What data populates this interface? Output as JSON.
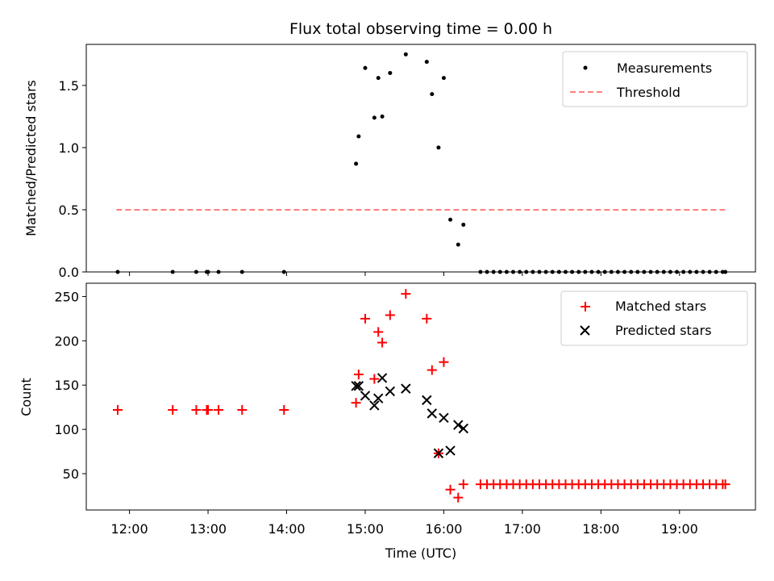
{
  "chart_data": [
    {
      "type": "scatter",
      "title": "Flux total observing time = 0.00 h",
      "ylabel": "Matched/Predicted stars",
      "xlabel": "",
      "xlim": [
        "11:27",
        "19:58"
      ],
      "ylim": [
        0,
        1.83
      ],
      "yticks": [
        "0.0",
        "0.5",
        "1.0",
        "1.5"
      ],
      "legend_position": "top-right",
      "legend": [
        "Measurements",
        "Threshold"
      ],
      "colors": {
        "measurements": "#000000",
        "threshold": "#ff7f7f"
      },
      "threshold": {
        "value": 0.5,
        "x_start": "11:50",
        "x_end": "19:35"
      },
      "series": [
        {
          "name": "Measurements",
          "x": [
            "11:51",
            "12:33",
            "12:51",
            "12:59",
            "13:00",
            "13:08",
            "13:26",
            "13:58",
            "14:53",
            "14:55",
            "15:00",
            "15:07",
            "15:10",
            "15:13",
            "15:19",
            "15:31",
            "15:47",
            "15:51",
            "15:56",
            "16:00",
            "16:05",
            "16:11",
            "16:15",
            "16:28",
            "16:33",
            "16:38",
            "16:43",
            "16:48",
            "16:53",
            "16:58",
            "17:03",
            "17:08",
            "17:13",
            "17:18",
            "17:23",
            "17:28",
            "17:33",
            "17:38",
            "17:43",
            "17:48",
            "17:53",
            "17:58",
            "18:03",
            "18:08",
            "18:13",
            "18:18",
            "18:23",
            "18:28",
            "18:33",
            "18:38",
            "18:43",
            "18:48",
            "18:53",
            "18:58",
            "19:03",
            "19:08",
            "19:13",
            "19:18",
            "19:23",
            "19:28",
            "19:33",
            "19:35"
          ],
          "y": [
            0,
            0,
            0,
            0,
            0,
            0,
            0,
            0,
            0.87,
            1.09,
            1.64,
            1.24,
            1.56,
            1.25,
            1.6,
            1.75,
            1.69,
            1.43,
            1.0,
            1.56,
            0.42,
            0.22,
            0.38,
            0,
            0,
            0,
            0,
            0,
            0,
            0,
            0,
            0,
            0,
            0,
            0,
            0,
            0,
            0,
            0,
            0,
            0,
            0,
            0,
            0,
            0,
            0,
            0,
            0,
            0,
            0,
            0,
            0,
            0,
            0,
            0,
            0,
            0,
            0,
            0,
            0,
            0,
            0
          ]
        }
      ]
    },
    {
      "type": "scatter",
      "title": "",
      "ylabel": "Count",
      "xlabel": "Time (UTC)",
      "xlim": [
        "11:27",
        "19:58"
      ],
      "ylim": [
        9,
        265
      ],
      "xticks": [
        "12:00",
        "13:00",
        "14:00",
        "15:00",
        "16:00",
        "17:00",
        "18:00",
        "19:00"
      ],
      "yticks": [
        "50",
        "100",
        "150",
        "200",
        "250"
      ],
      "legend_position": "top-right",
      "legend": [
        "Matched stars",
        "Predicted stars"
      ],
      "colors": {
        "matched": "#ff0000",
        "predicted": "#000000"
      },
      "series": [
        {
          "name": "Matched stars",
          "x": [
            "11:51",
            "12:33",
            "12:51",
            "12:59",
            "13:00",
            "13:08",
            "13:26",
            "13:58",
            "14:53",
            "14:55",
            "15:00",
            "15:07",
            "15:10",
            "15:13",
            "15:19",
            "15:31",
            "15:47",
            "15:51",
            "15:56",
            "16:00",
            "16:05",
            "16:11",
            "16:15",
            "16:28",
            "16:33",
            "16:38",
            "16:43",
            "16:48",
            "16:53",
            "16:58",
            "17:03",
            "17:08",
            "17:13",
            "17:18",
            "17:23",
            "17:28",
            "17:33",
            "17:38",
            "17:43",
            "17:48",
            "17:53",
            "17:58",
            "18:03",
            "18:08",
            "18:13",
            "18:18",
            "18:23",
            "18:28",
            "18:33",
            "18:38",
            "18:43",
            "18:48",
            "18:53",
            "18:58",
            "19:03",
            "19:08",
            "19:13",
            "19:18",
            "19:23",
            "19:28",
            "19:33",
            "19:35"
          ],
          "y": [
            122,
            122,
            122,
            122,
            122,
            122,
            122,
            122,
            130,
            162,
            225,
            157,
            210,
            198,
            229,
            253,
            225,
            167,
            73,
            176,
            32,
            23,
            38,
            38,
            38,
            38,
            38,
            38,
            38,
            38,
            38,
            38,
            38,
            38,
            38,
            38,
            38,
            38,
            38,
            38,
            38,
            38,
            38,
            38,
            38,
            38,
            38,
            38,
            38,
            38,
            38,
            38,
            38,
            38,
            38,
            38,
            38,
            38,
            38,
            38,
            38,
            38
          ]
        },
        {
          "name": "Predicted stars",
          "x": [
            "14:53",
            "14:55",
            "15:00",
            "15:07",
            "15:10",
            "15:13",
            "15:19",
            "15:31",
            "15:47",
            "15:51",
            "15:56",
            "16:00",
            "16:05",
            "16:11",
            "16:15"
          ],
          "y": [
            149,
            149,
            138,
            127,
            135,
            158,
            143,
            146,
            133,
            118,
            73,
            113,
            76,
            105,
            101
          ]
        }
      ]
    }
  ]
}
